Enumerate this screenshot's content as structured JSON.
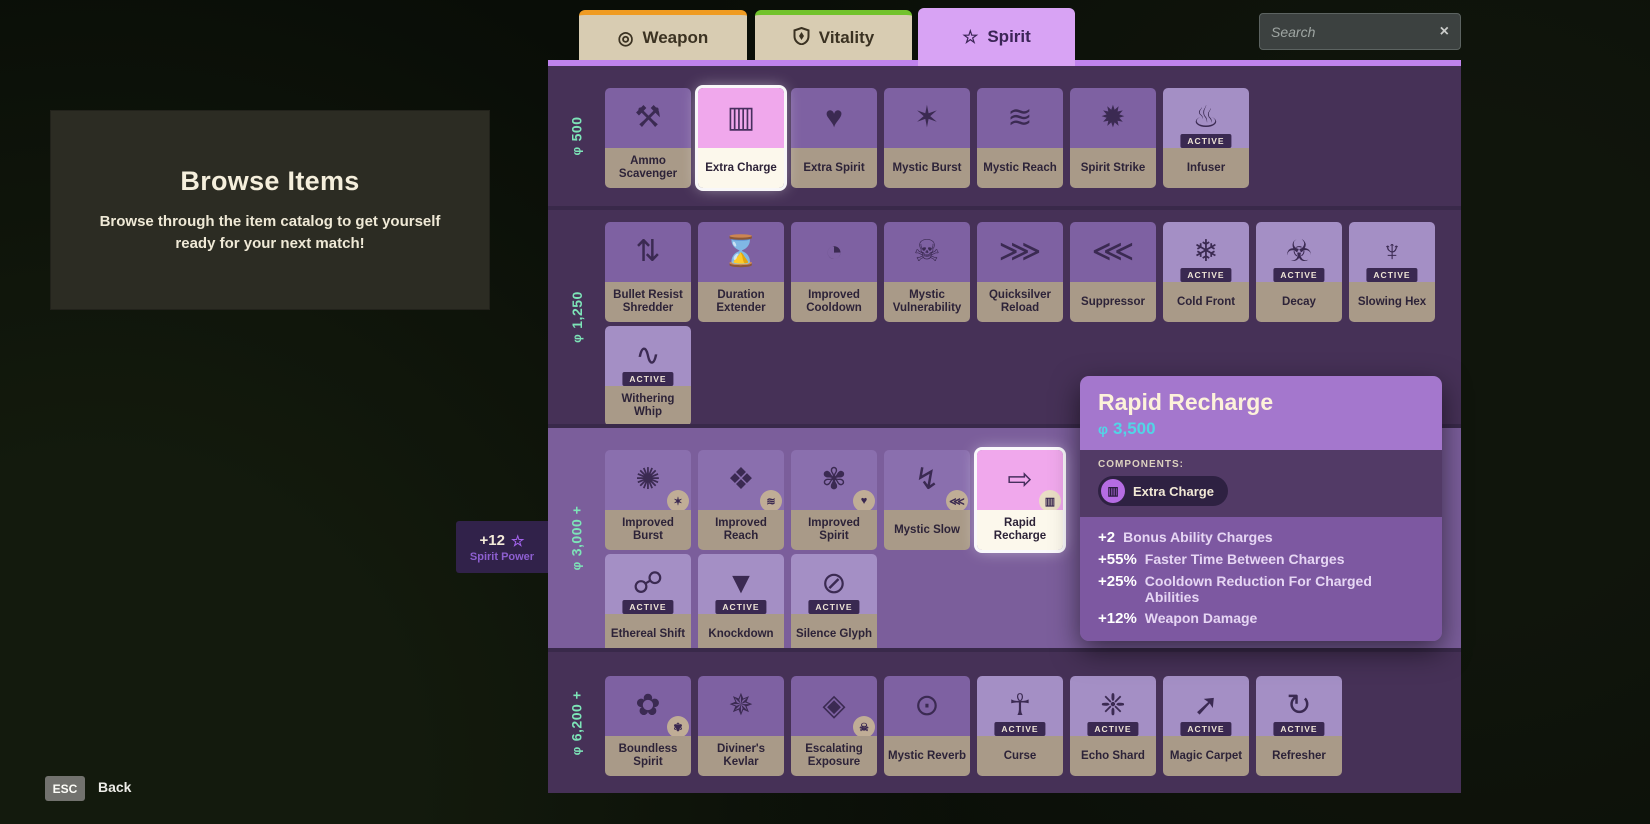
{
  "browse_panel": {
    "title": "Browse Items",
    "subtitle": "Browse through the item catalog to get yourself ready for your next match!"
  },
  "footer": {
    "esc_key": "ESC",
    "back_label": "Back"
  },
  "spirit_power_badge": {
    "value": "+12",
    "star_icon": "☆",
    "label": "Spirit Power"
  },
  "search": {
    "placeholder": "Search",
    "close_icon": "×"
  },
  "currency_icon": "φ",
  "active_badge_label": "ACTIVE",
  "colors": {
    "weapon_accent": "#ef9b22",
    "vitality_accent": "#72c22c",
    "spirit_tab_bg": "#d8a3f4",
    "tier_label": "#7de4b8",
    "price_text": "#52d5e6",
    "panel_dark": "#463157",
    "panel_light": "#7b5e9b"
  },
  "tabs": [
    {
      "id": "weapon",
      "label": "Weapon",
      "icon": "◎",
      "active": false
    },
    {
      "id": "vitality",
      "label": "Vitality",
      "icon": "shield",
      "active": false
    },
    {
      "id": "spirit",
      "label": "Spirit",
      "icon": "☆",
      "active": true
    }
  ],
  "tiers": [
    {
      "price": "500",
      "light": false,
      "rows": [
        [
          {
            "name": "Ammo Scavenger",
            "icon": "⚒",
            "type": "passive"
          },
          {
            "name": "Extra Charge",
            "icon": "▥",
            "type": "passive",
            "selected": true
          },
          {
            "name": "Extra Spirit",
            "icon": "♥",
            "type": "passive"
          },
          {
            "name": "Mystic Burst",
            "icon": "✶",
            "type": "passive"
          },
          {
            "name": "Mystic Reach",
            "icon": "≋",
            "type": "passive"
          },
          {
            "name": "Spirit Strike",
            "icon": "✹",
            "type": "passive"
          },
          {
            "name": "Infuser",
            "icon": "♨",
            "type": "active"
          }
        ]
      ]
    },
    {
      "price": "1,250",
      "light": false,
      "rows": [
        [
          {
            "name": "Bullet Resist Shredder",
            "icon": "⇅",
            "type": "passive"
          },
          {
            "name": "Duration Extender",
            "icon": "⌛",
            "type": "passive"
          },
          {
            "name": "Improved Cooldown",
            "icon": "◔",
            "type": "passive"
          },
          {
            "name": "Mystic Vulnerability",
            "icon": "☠",
            "type": "passive"
          },
          {
            "name": "Quicksilver Reload",
            "icon": "⋙",
            "type": "passive"
          },
          {
            "name": "Suppressor",
            "icon": "⋘",
            "type": "passive"
          },
          {
            "name": "Cold Front",
            "icon": "❄",
            "type": "active"
          },
          {
            "name": "Decay",
            "icon": "☣",
            "type": "active"
          },
          {
            "name": "Slowing Hex",
            "icon": "♆",
            "type": "active"
          }
        ],
        [
          {
            "name": "Withering Whip",
            "icon": "∿",
            "type": "active"
          }
        ]
      ]
    },
    {
      "price": "3,000 +",
      "light": true,
      "rows": [
        [
          {
            "name": "Improved Burst",
            "icon": "✺",
            "type": "passive",
            "component_icon": "✶"
          },
          {
            "name": "Improved Reach",
            "icon": "❖",
            "type": "passive",
            "component_icon": "≋"
          },
          {
            "name": "Improved Spirit",
            "icon": "✾",
            "type": "passive",
            "component_icon": "♥"
          },
          {
            "name": "Mystic Slow",
            "icon": "↯",
            "type": "passive",
            "component_icon": "⋘"
          },
          {
            "name": "Rapid Recharge",
            "icon": "⇨",
            "type": "passive",
            "selected": true,
            "component_icon": "▥"
          }
        ],
        [
          {
            "name": "Ethereal Shift",
            "icon": "☍",
            "type": "active"
          },
          {
            "name": "Knockdown",
            "icon": "▼",
            "type": "active"
          },
          {
            "name": "Silence Glyph",
            "icon": "⊘",
            "type": "active"
          }
        ]
      ]
    },
    {
      "price": "6,200 +",
      "light": false,
      "rows": [
        [
          {
            "name": "Boundless Spirit",
            "icon": "✿",
            "type": "passive",
            "component_icon": "✾"
          },
          {
            "name": "Diviner's Kevlar",
            "icon": "✵",
            "type": "passive"
          },
          {
            "name": "Escalating Exposure",
            "icon": "◈",
            "type": "passive",
            "component_icon": "☠"
          },
          {
            "name": "Mystic Reverb",
            "icon": "⊙",
            "type": "passive"
          },
          {
            "name": "Curse",
            "icon": "☥",
            "type": "active"
          },
          {
            "name": "Echo Shard",
            "icon": "❈",
            "type": "active"
          },
          {
            "name": "Magic Carpet",
            "icon": "➚",
            "type": "active"
          },
          {
            "name": "Refresher",
            "icon": "↻",
            "type": "active"
          }
        ]
      ]
    }
  ],
  "tooltip": {
    "title": "Rapid Recharge",
    "price": "3,500",
    "components_label": "COMPONENTS:",
    "components": [
      {
        "name": "Extra Charge",
        "icon": "▥"
      }
    ],
    "stats": [
      {
        "value": "+2",
        "label": "Bonus Ability Charges"
      },
      {
        "value": "+55%",
        "label": "Faster Time Between Charges"
      },
      {
        "value": "+25%",
        "label": "Cooldown Reduction For Charged Abilities"
      },
      {
        "value": "+12%",
        "label": "Weapon Damage"
      }
    ]
  }
}
